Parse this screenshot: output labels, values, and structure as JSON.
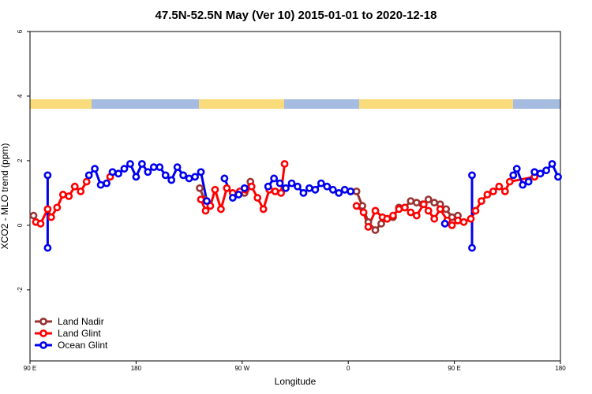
{
  "chart_data": {
    "type": "line",
    "title": "47.5N-52.5N May (Ver 10)   2015-01-01 to 2020-12-18",
    "x_label": "Longitude",
    "y_label": "XCO2 - MLO trend (ppm)",
    "xlim": [
      90,
      540
    ],
    "ylim": [
      -4.2,
      6
    ],
    "xticks": [
      {
        "value": 90,
        "label": "90 E"
      },
      180,
      {
        "value": 270,
        "label": "90 W"
      },
      {
        "value": 360,
        "label": "0"
      },
      {
        "value": 450,
        "label": "90 E"
      },
      {
        "value": 540,
        "label": "180"
      }
    ],
    "yticks": [
      -2,
      0,
      2,
      4,
      6
    ],
    "legend": "bottom-left",
    "series": [
      {
        "name": "Land Nadir",
        "color": "#993333",
        "x": [
          93,
          null,
          234,
          238,
          null,
          272,
          277,
          null,
          362,
          367,
          372,
          377,
          383,
          388,
          393,
          398,
          403,
          408,
          413,
          418,
          423,
          428,
          433,
          438,
          443,
          448,
          453
        ],
        "values": [
          0.3,
          null,
          1.15,
          0.8,
          null,
          1.0,
          1.35,
          null,
          1.05,
          1.05,
          0.6,
          0.1,
          -0.15,
          0.05,
          0.2,
          0.25,
          0.55,
          0.55,
          0.75,
          0.7,
          0.65,
          0.8,
          0.7,
          0.65,
          0.5,
          0.25,
          0.3
        ]
      },
      {
        "name": "Land Glint",
        "color": "#ff0000",
        "x": [
          95,
          99,
          105,
          108,
          113,
          118,
          123,
          128,
          133,
          138,
          null,
          158,
          null,
          235,
          239,
          243,
          247,
          252,
          257,
          262,
          268,
          273,
          278,
          283,
          288,
          293,
          298,
          303,
          306,
          null,
          367,
          373,
          377,
          383,
          389,
          393,
          398,
          403,
          408,
          413,
          418,
          424,
          428,
          433,
          438,
          444,
          448,
          453,
          458,
          464,
          468,
          473,
          478,
          483,
          488,
          493,
          497,
          518
        ],
        "values": [
          0.1,
          0.05,
          0.5,
          0.25,
          0.55,
          0.95,
          0.9,
          1.2,
          1.05,
          1.35,
          null,
          1.5,
          null,
          0.8,
          0.45,
          0.6,
          1.1,
          0.5,
          1.15,
          1.0,
          1.05,
          1.1,
          1.2,
          0.85,
          0.5,
          1.1,
          1.05,
          1.0,
          1.9,
          null,
          0.6,
          0.4,
          -0.05,
          0.45,
          0.25,
          0.2,
          0.3,
          0.5,
          0.55,
          0.4,
          0.3,
          0.65,
          0.45,
          0.2,
          0.5,
          0.15,
          0.0,
          0.15,
          0.1,
          0.2,
          0.45,
          0.75,
          0.95,
          1.05,
          1.2,
          1.05,
          1.35,
          1.5
        ]
      },
      {
        "name": "Ocean Glint",
        "color": "#0000ee",
        "x": [
          105,
          105,
          null,
          140,
          145,
          150,
          155,
          160,
          165,
          170,
          175,
          180,
          185,
          190,
          195,
          200,
          205,
          210,
          215,
          220,
          225,
          230,
          235,
          240,
          null,
          255,
          262,
          267,
          272,
          null,
          292,
          297,
          302,
          307,
          312,
          317,
          322,
          327,
          332,
          337,
          342,
          347,
          352,
          357,
          362,
          null,
          442,
          null,
          465,
          465,
          null,
          500,
          503,
          508,
          513,
          518,
          523,
          528,
          533,
          538
        ],
        "values": [
          1.55,
          -0.7,
          null,
          1.55,
          1.75,
          1.25,
          1.3,
          1.65,
          1.6,
          1.75,
          1.9,
          1.5,
          1.9,
          1.65,
          1.8,
          1.8,
          1.55,
          1.4,
          1.8,
          1.55,
          1.45,
          1.5,
          1.65,
          0.75,
          null,
          1.45,
          0.85,
          0.95,
          1.15,
          null,
          1.2,
          1.45,
          1.3,
          1.15,
          1.3,
          1.2,
          1.0,
          1.15,
          1.1,
          1.3,
          1.2,
          1.1,
          1.0,
          1.1,
          1.05,
          null,
          0.05,
          null,
          1.55,
          -0.7,
          null,
          1.55,
          1.75,
          1.25,
          1.35,
          1.65,
          1.6,
          1.7,
          1.9,
          1.5
        ]
      }
    ]
  }
}
